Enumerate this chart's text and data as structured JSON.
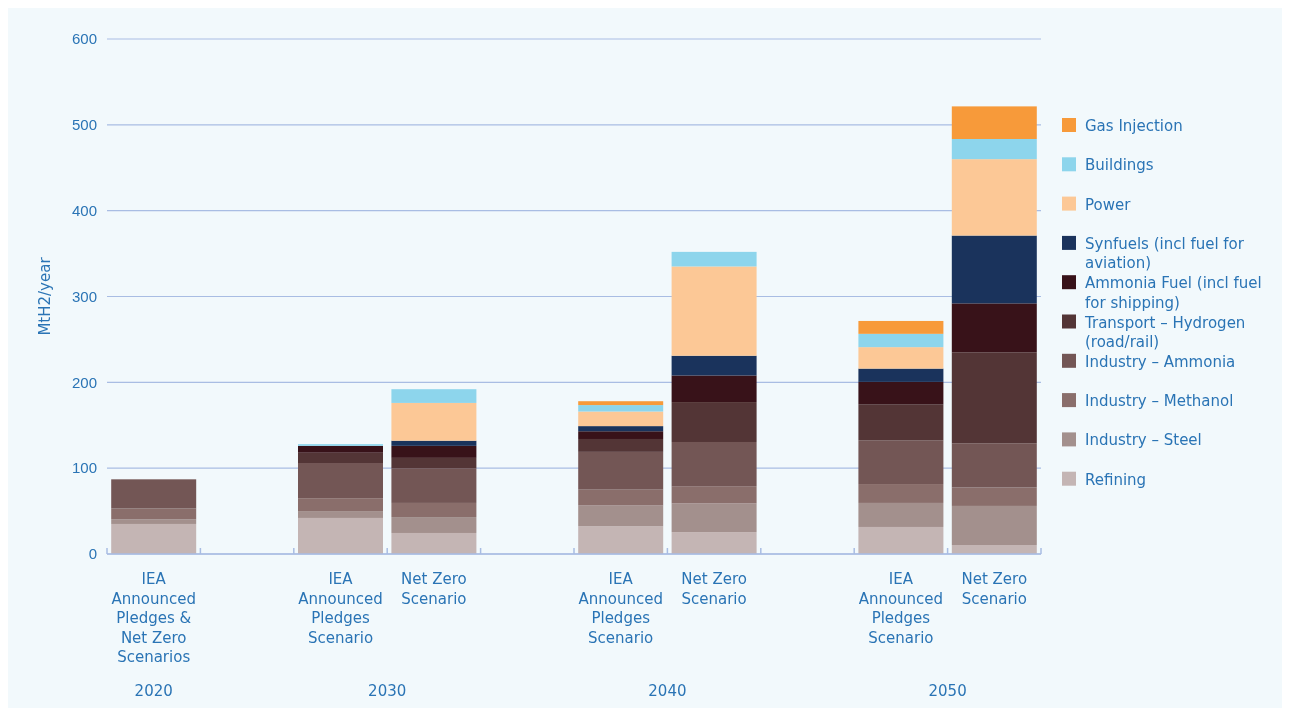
{
  "chart_data": {
    "type": "bar",
    "stacked": true,
    "ylabel": "MtH2/year",
    "ylim": [
      0,
      600
    ],
    "yticks": [
      0,
      100,
      200,
      300,
      400,
      500,
      600
    ],
    "grid": "y",
    "legend": "right",
    "categories": [
      "IEA Announced Pledges & Net Zero Scenarios",
      null,
      "IEA Announced Pledges Scenario",
      "Net Zero Scenario",
      null,
      "IEA Announced Pledges Scenario",
      "Net Zero Scenario",
      null,
      "IEA Announced Pledges Scenario",
      "Net Zero Scenario"
    ],
    "annotations": [
      "2020",
      "2030",
      "2040",
      "2050"
    ],
    "series": [
      {
        "name": "Refining",
        "color": "#c4b5b4",
        "values": [
          35,
          null,
          42,
          24.5,
          null,
          32.5,
          25.5,
          null,
          31.5,
          10.5
        ]
      },
      {
        "name": "Industry – Steel",
        "color": "#a3908d",
        "values": [
          5.5,
          null,
          8,
          18.5,
          null,
          24,
          33.5,
          null,
          28,
          45.5
        ]
      },
      {
        "name": "Industry – Methanol",
        "color": "#8a6e6b",
        "values": [
          12.5,
          null,
          15,
          16.5,
          null,
          18.5,
          20,
          null,
          22,
          21.5
        ]
      },
      {
        "name": "Industry – Ammonia",
        "color": "#735655",
        "values": [
          34,
          null,
          41,
          40.5,
          null,
          44,
          51.5,
          null,
          51,
          51.5
        ]
      },
      {
        "name": "Transport – Hydrogen (road/rail)",
        "color": "#533536",
        "values": [
          null,
          null,
          12,
          12,
          null,
          15,
          46.5,
          null,
          42,
          106
        ]
      },
      {
        "name": "Ammonia Fuel (incl fuel for shipping)",
        "color": "#381219",
        "values": [
          null,
          null,
          8,
          14,
          null,
          9,
          31,
          null,
          26,
          57
        ]
      },
      {
        "name": "Synfuels (incl fuel for aviation)",
        "color": "#1a335c",
        "values": [
          null,
          null,
          null,
          6,
          null,
          6,
          23,
          null,
          15.5,
          79
        ]
      },
      {
        "name": "Power",
        "color": "#fcc896",
        "values": [
          null,
          null,
          null,
          44,
          null,
          17,
          104,
          null,
          25,
          89
        ]
      },
      {
        "name": "Buildings",
        "color": "#8dd5ec",
        "values": [
          null,
          null,
          2,
          16,
          null,
          7.5,
          17,
          null,
          15.5,
          23.5
        ]
      },
      {
        "name": "Gas Injection",
        "color": "#f79a3a",
        "values": [
          null,
          null,
          null,
          null,
          null,
          4.5,
          null,
          null,
          15,
          38
        ]
      }
    ]
  }
}
